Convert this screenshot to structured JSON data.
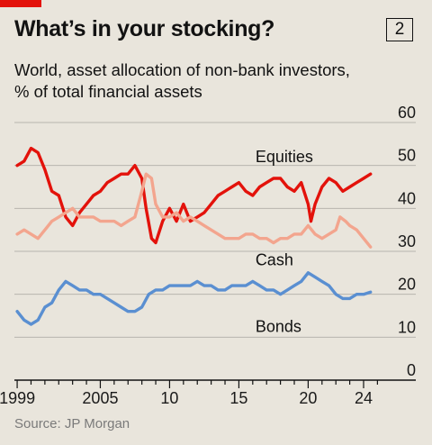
{
  "header": {
    "title": "What’s in your stocking?",
    "chart_number": "2",
    "subtitle_line1": "World, asset allocation of non-bank investors,",
    "subtitle_line2": "% of total financial assets"
  },
  "source": "Source: JP Morgan",
  "colors": {
    "equities": "#e3120b",
    "cash": "#f3a58e",
    "bonds": "#5a8fd1",
    "brand_red": "#e3120b"
  },
  "chart_data": {
    "type": "line",
    "title": "What’s in your stocking?",
    "subtitle": "World, asset allocation of non-bank investors, % of total financial assets",
    "xlabel": "",
    "ylabel": "",
    "xlim": [
      1998.8,
      2025.3
    ],
    "ylim": [
      0,
      60
    ],
    "y_ticks": [
      0,
      10,
      20,
      30,
      40,
      50,
      60
    ],
    "x_ticks": [
      {
        "value": 1999,
        "label": "1999"
      },
      {
        "value": 2005,
        "label": "2005"
      },
      {
        "value": 2010,
        "label": "10"
      },
      {
        "value": 2015,
        "label": "15"
      },
      {
        "value": 2020,
        "label": "20"
      },
      {
        "value": 2024,
        "label": "24"
      }
    ],
    "grid": true,
    "series": [
      {
        "name": "Equities",
        "key": "equities",
        "label_at": [
          2016,
          52
        ],
        "points": [
          [
            1999.0,
            50
          ],
          [
            1999.5,
            51
          ],
          [
            2000.0,
            54
          ],
          [
            2000.5,
            53
          ],
          [
            2001.0,
            49
          ],
          [
            2001.5,
            44
          ],
          [
            2002.0,
            43
          ],
          [
            2002.5,
            38
          ],
          [
            2003.0,
            36
          ],
          [
            2003.5,
            39
          ],
          [
            2004.0,
            41
          ],
          [
            2004.5,
            43
          ],
          [
            2005.0,
            44
          ],
          [
            2005.5,
            46
          ],
          [
            2006.0,
            47
          ],
          [
            2006.5,
            48
          ],
          [
            2007.0,
            48
          ],
          [
            2007.5,
            50
          ],
          [
            2008.0,
            47
          ],
          [
            2008.3,
            40
          ],
          [
            2008.7,
            33
          ],
          [
            2009.0,
            32
          ],
          [
            2009.5,
            37
          ],
          [
            2010.0,
            40
          ],
          [
            2010.5,
            37
          ],
          [
            2011.0,
            41
          ],
          [
            2011.5,
            37
          ],
          [
            2012.0,
            38
          ],
          [
            2012.5,
            39
          ],
          [
            2013.0,
            41
          ],
          [
            2013.5,
            43
          ],
          [
            2014.0,
            44
          ],
          [
            2014.5,
            45
          ],
          [
            2015.0,
            46
          ],
          [
            2015.5,
            44
          ],
          [
            2016.0,
            43
          ],
          [
            2016.5,
            45
          ],
          [
            2017.0,
            46
          ],
          [
            2017.5,
            47
          ],
          [
            2018.0,
            47
          ],
          [
            2018.5,
            45
          ],
          [
            2019.0,
            44
          ],
          [
            2019.5,
            46
          ],
          [
            2020.0,
            41
          ],
          [
            2020.2,
            37
          ],
          [
            2020.5,
            41
          ],
          [
            2021.0,
            45
          ],
          [
            2021.5,
            47
          ],
          [
            2022.0,
            46
          ],
          [
            2022.5,
            44
          ],
          [
            2023.0,
            45
          ],
          [
            2023.5,
            46
          ],
          [
            2024.0,
            47
          ],
          [
            2024.5,
            48
          ]
        ]
      },
      {
        "name": "Cash",
        "key": "cash",
        "label_at": [
          2016,
          28
        ],
        "points": [
          [
            1999.0,
            34
          ],
          [
            1999.5,
            35
          ],
          [
            2000.0,
            34
          ],
          [
            2000.5,
            33
          ],
          [
            2001.0,
            35
          ],
          [
            2001.5,
            37
          ],
          [
            2002.0,
            38
          ],
          [
            2002.5,
            39
          ],
          [
            2003.0,
            40
          ],
          [
            2003.5,
            38
          ],
          [
            2004.0,
            38
          ],
          [
            2004.5,
            38
          ],
          [
            2005.0,
            37
          ],
          [
            2005.5,
            37
          ],
          [
            2006.0,
            37
          ],
          [
            2006.5,
            36
          ],
          [
            2007.0,
            37
          ],
          [
            2007.5,
            38
          ],
          [
            2008.0,
            44
          ],
          [
            2008.3,
            48
          ],
          [
            2008.7,
            47
          ],
          [
            2009.0,
            41
          ],
          [
            2009.5,
            38
          ],
          [
            2010.0,
            38
          ],
          [
            2010.5,
            39
          ],
          [
            2011.0,
            37
          ],
          [
            2011.5,
            38
          ],
          [
            2012.0,
            37
          ],
          [
            2012.5,
            36
          ],
          [
            2013.0,
            35
          ],
          [
            2013.5,
            34
          ],
          [
            2014.0,
            33
          ],
          [
            2014.5,
            33
          ],
          [
            2015.0,
            33
          ],
          [
            2015.5,
            34
          ],
          [
            2016.0,
            34
          ],
          [
            2016.5,
            33
          ],
          [
            2017.0,
            33
          ],
          [
            2017.5,
            32
          ],
          [
            2018.0,
            33
          ],
          [
            2018.5,
            33
          ],
          [
            2019.0,
            34
          ],
          [
            2019.5,
            34
          ],
          [
            2020.0,
            36
          ],
          [
            2020.5,
            34
          ],
          [
            2021.0,
            33
          ],
          [
            2021.5,
            34
          ],
          [
            2022.0,
            35
          ],
          [
            2022.3,
            38
          ],
          [
            2022.7,
            37
          ],
          [
            2023.0,
            36
          ],
          [
            2023.5,
            35
          ],
          [
            2024.0,
            33
          ],
          [
            2024.5,
            31
          ]
        ]
      },
      {
        "name": "Bonds",
        "key": "bonds",
        "label_at": [
          2016,
          12.5
        ],
        "points": [
          [
            1999.0,
            16
          ],
          [
            1999.5,
            14
          ],
          [
            2000.0,
            13
          ],
          [
            2000.5,
            14
          ],
          [
            2001.0,
            17
          ],
          [
            2001.5,
            18
          ],
          [
            2002.0,
            21
          ],
          [
            2002.5,
            23
          ],
          [
            2003.0,
            22
          ],
          [
            2003.5,
            21
          ],
          [
            2004.0,
            21
          ],
          [
            2004.5,
            20
          ],
          [
            2005.0,
            20
          ],
          [
            2005.5,
            19
          ],
          [
            2006.0,
            18
          ],
          [
            2006.5,
            17
          ],
          [
            2007.0,
            16
          ],
          [
            2007.5,
            16
          ],
          [
            2008.0,
            17
          ],
          [
            2008.5,
            20
          ],
          [
            2009.0,
            21
          ],
          [
            2009.5,
            21
          ],
          [
            2010.0,
            22
          ],
          [
            2010.5,
            22
          ],
          [
            2011.0,
            22
          ],
          [
            2011.5,
            22
          ],
          [
            2012.0,
            23
          ],
          [
            2012.5,
            22
          ],
          [
            2013.0,
            22
          ],
          [
            2013.5,
            21
          ],
          [
            2014.0,
            21
          ],
          [
            2014.5,
            22
          ],
          [
            2015.0,
            22
          ],
          [
            2015.5,
            22
          ],
          [
            2016.0,
            23
          ],
          [
            2016.5,
            22
          ],
          [
            2017.0,
            21
          ],
          [
            2017.5,
            21
          ],
          [
            2018.0,
            20
          ],
          [
            2018.5,
            21
          ],
          [
            2019.0,
            22
          ],
          [
            2019.5,
            23
          ],
          [
            2020.0,
            25
          ],
          [
            2020.5,
            24
          ],
          [
            2021.0,
            23
          ],
          [
            2021.5,
            22
          ],
          [
            2022.0,
            20
          ],
          [
            2022.5,
            19
          ],
          [
            2023.0,
            19
          ],
          [
            2023.5,
            20
          ],
          [
            2024.0,
            20
          ],
          [
            2024.5,
            20.5
          ]
        ]
      }
    ]
  }
}
